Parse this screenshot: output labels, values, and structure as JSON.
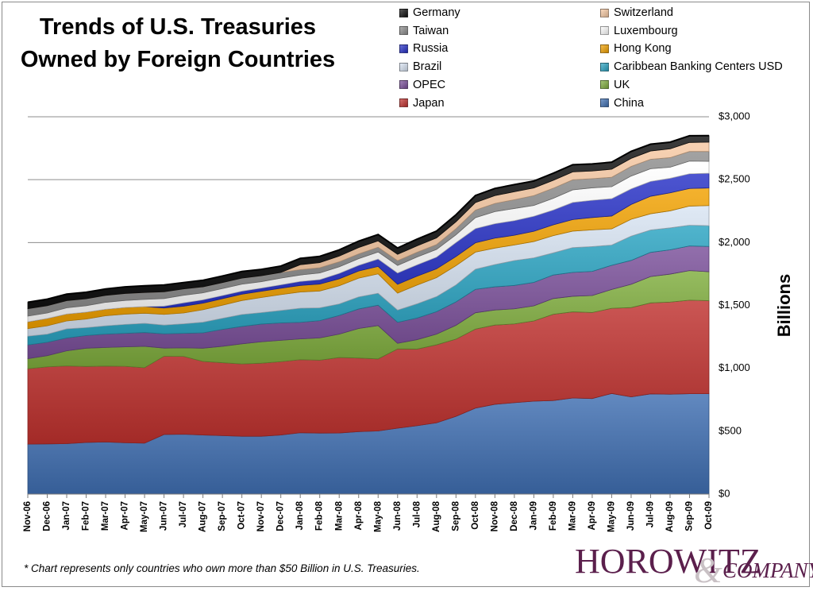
{
  "header": {
    "title_line1": "Trends of U.S. Treasuries",
    "title_line2": "Owned by Foreign Countries"
  },
  "footnote": "* Chart represents only countries who own more than $50 Billion in U.S. Treasuries.",
  "logo": {
    "name": "Horowitz & Company",
    "word1": "HOROWITZ",
    "amp": "&",
    "word2": "COMPANY"
  },
  "chart_data": {
    "type": "area",
    "stacked": true,
    "title": "Trends of U.S. Treasuries Owned by Foreign Countries",
    "ylabel": "Billions",
    "xlabel": "",
    "ylim": [
      0,
      3000
    ],
    "yticks": [
      0,
      500,
      1000,
      1500,
      2000,
      2500,
      3000
    ],
    "ytick_labels": [
      "$0",
      "$500",
      "$1,000",
      "$1,500",
      "$2,000",
      "$2,500",
      "$3,000"
    ],
    "grid": true,
    "legend_position": "top-right",
    "categories": [
      "Nov-06",
      "Dec-06",
      "Jan-07",
      "Feb-07",
      "Mar-07",
      "Apr-07",
      "May-07",
      "Jun-07",
      "Jul-07",
      "Aug-07",
      "Sep-07",
      "Oct-07",
      "Nov-07",
      "Dec-07",
      "Jan-08",
      "Feb-08",
      "Mar-08",
      "Apr-08",
      "May-08",
      "Jun-08",
      "Jul-08",
      "Aug-08",
      "Sep-08",
      "Oct-08",
      "Nov-08",
      "Dec-08",
      "Jan-09",
      "Feb-09",
      "Mar-09",
      "Apr-09",
      "May-09",
      "Jun-09",
      "Jul-09",
      "Aug-09",
      "Sep-09",
      "Oct-09"
    ],
    "series": [
      {
        "name": "China",
        "color": "#3f6fb2",
        "values": [
          397,
          399,
          401,
          411,
          415,
          408,
          405,
          474,
          476,
          470,
          465,
          460,
          460,
          470,
          488,
          485,
          486,
          497,
          502,
          524,
          544,
          567,
          618,
          684,
          714,
          727,
          739,
          744,
          764,
          760,
          800,
          773,
          797,
          794,
          798,
          798
        ]
      },
      {
        "name": "Japan",
        "color": "#c0312e",
        "values": [
          600,
          613,
          618,
          604,
          603,
          608,
          600,
          622,
          619,
          585,
          580,
          575,
          581,
          583,
          581,
          580,
          600,
          585,
          573,
          630,
          609,
          620,
          614,
          628,
          630,
          626,
          638,
          686,
          685,
          684,
          677,
          710,
          723,
          733,
          744,
          740
        ]
      },
      {
        "name": "UK",
        "color": "#7fad3d",
        "values": [
          80,
          89,
          120,
          145,
          148,
          155,
          170,
          65,
          68,
          105,
          130,
          160,
          170,
          170,
          165,
          177,
          186,
          235,
          265,
          45,
          75,
          85,
          110,
          130,
          120,
          120,
          120,
          125,
          124,
          135,
          150,
          185,
          210,
          222,
          235,
          230
        ]
      },
      {
        "name": "OPEC",
        "color": "#7a4f9a",
        "values": [
          109,
          106,
          102,
          101,
          106,
          107,
          110,
          113,
          115,
          122,
          135,
          138,
          141,
          138,
          132,
          137,
          148,
          155,
          162,
          167,
          172,
          178,
          186,
          186,
          184,
          186,
          186,
          187,
          190,
          192,
          192,
          190,
          192,
          193,
          196,
          201
        ]
      },
      {
        "name": "Caribbean Banking Centers USD",
        "color": "#2aa3c2",
        "values": [
          70,
          65,
          73,
          63,
          66,
          71,
          73,
          70,
          76,
          85,
          88,
          95,
          91,
          99,
          112,
          102,
          92,
          96,
          95,
          97,
          113,
          120,
          135,
          160,
          177,
          198,
          195,
          176,
          197,
          197,
          161,
          193,
          178,
          175,
          165,
          165
        ]
      },
      {
        "name": "Brazil",
        "color": "#d8e4f3",
        "values": [
          60,
          66,
          63,
          68,
          80,
          82,
          80,
          85,
          86,
          99,
          104,
          111,
          120,
          126,
          129,
          134,
          144,
          149,
          154,
          135,
          149,
          151,
          153,
          136,
          131,
          124,
          130,
          137,
          131,
          133,
          129,
          134,
          129,
          135,
          152,
          160
        ]
      },
      {
        "name": "Hong Kong",
        "color": "#f1a100",
        "values": [
          54,
          59,
          55,
          55,
          52,
          53,
          53,
          51,
          54,
          52,
          52,
          50,
          50,
          51,
          52,
          55,
          56,
          57,
          59,
          70,
          71,
          70,
          73,
          74,
          79,
          77,
          82,
          86,
          92,
          98,
          102,
          118,
          139,
          143,
          140,
          140
        ]
      },
      {
        "name": "Russia",
        "color": "#2630c6",
        "values": [
          0,
          0,
          0,
          0,
          0,
          0,
          0,
          15,
          27,
          27,
          25,
          25,
          25,
          27,
          32,
          35,
          43,
          45,
          59,
          90,
          90,
          93,
          111,
          113,
          115,
          116,
          119,
          118,
          136,
          137,
          138,
          124,
          118,
          116,
          117,
          117
        ]
      },
      {
        "name": "Luxembourg",
        "color": "#ffffff",
        "values": [
          45,
          43,
          49,
          51,
          55,
          56,
          57,
          60,
          60,
          55,
          55,
          55,
          51,
          53,
          51,
          53,
          52,
          53,
          56,
          60,
          62,
          61,
          62,
          87,
          96,
          97,
          86,
          93,
          100,
          99,
          95,
          102,
          101,
          88,
          101,
          95
        ]
      },
      {
        "name": "Taiwan",
        "color": "#8d8d8d",
        "values": [
          59,
          58,
          57,
          55,
          55,
          55,
          55,
          53,
          50,
          48,
          48,
          48,
          47,
          45,
          43,
          42,
          40,
          38,
          38,
          38,
          38,
          39,
          48,
          60,
          65,
          70,
          78,
          80,
          80,
          73,
          75,
          76,
          75,
          76,
          76,
          78
        ]
      },
      {
        "name": "Switzerland",
        "color": "#f6c8a2",
        "values": [
          0,
          0,
          0,
          0,
          0,
          0,
          0,
          0,
          0,
          0,
          0,
          0,
          0,
          0,
          39,
          40,
          45,
          50,
          50,
          50,
          51,
          53,
          55,
          60,
          62,
          63,
          61,
          63,
          63,
          61,
          64,
          64,
          66,
          70,
          72,
          74
        ]
      },
      {
        "name": "Germany",
        "color": "#111111",
        "values": [
          51,
          52,
          52,
          52,
          51,
          53,
          53,
          55,
          51,
          52,
          52,
          53,
          51,
          51,
          50,
          50,
          50,
          51,
          51,
          51,
          53,
          54,
          56,
          56,
          57,
          57,
          55,
          56,
          57,
          56,
          56,
          56,
          54,
          53,
          53,
          52
        ]
      }
    ],
    "legend_entries": [
      {
        "name": "Germany",
        "color": "#111111"
      },
      {
        "name": "Switzerland",
        "color": "#f6c8a2"
      },
      {
        "name": "Taiwan",
        "color": "#8d8d8d"
      },
      {
        "name": "Luxembourg",
        "color": "#ffffff"
      },
      {
        "name": "Russia",
        "color": "#2630c6"
      },
      {
        "name": "Hong Kong",
        "color": "#f1a100"
      },
      {
        "name": "Brazil",
        "color": "#d8e4f3"
      },
      {
        "name": "Caribbean Banking Centers USD",
        "color": "#2aa3c2"
      },
      {
        "name": "OPEC",
        "color": "#7a4f9a"
      },
      {
        "name": "UK",
        "color": "#7fad3d"
      },
      {
        "name": "Japan",
        "color": "#c0312e"
      },
      {
        "name": "China",
        "color": "#3f6fb2"
      }
    ]
  }
}
